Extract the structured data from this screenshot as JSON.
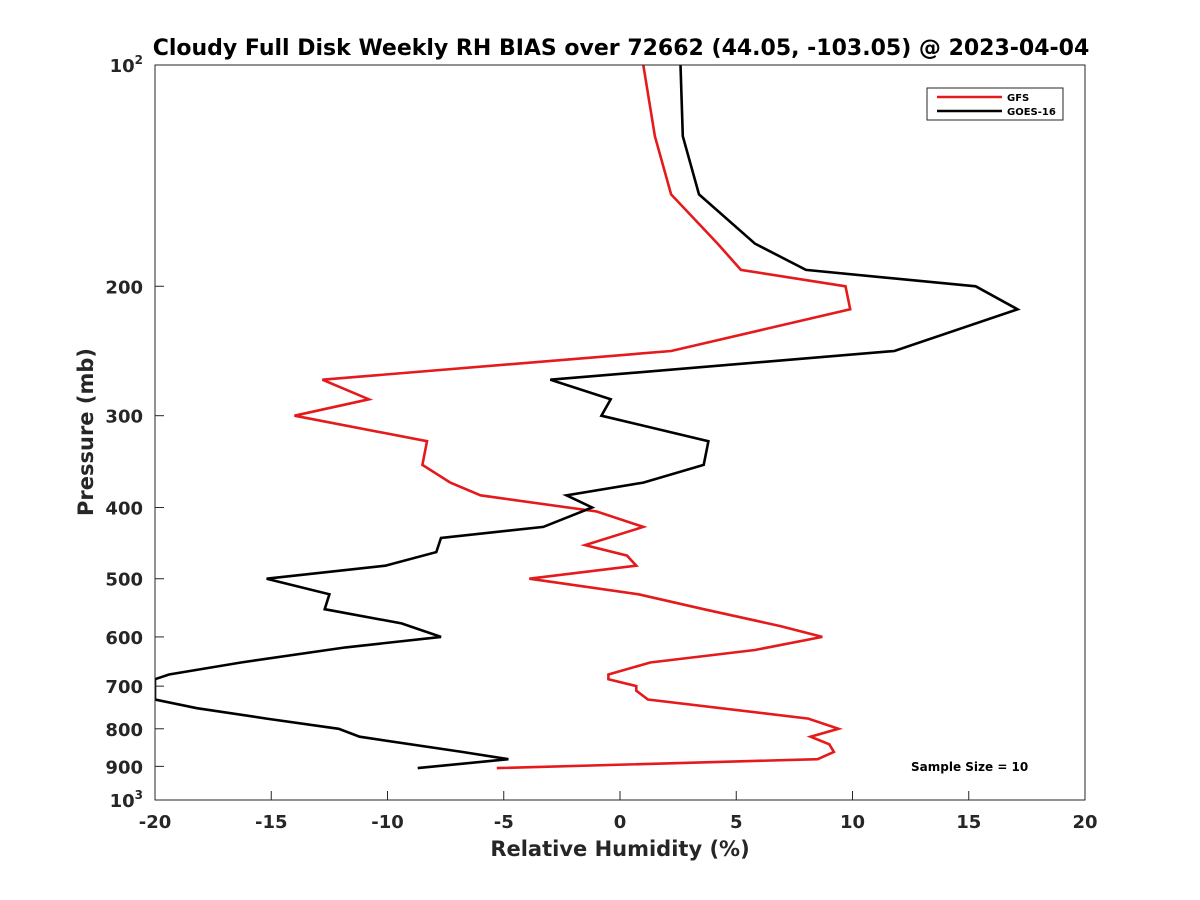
{
  "chart_data": {
    "type": "line",
    "title": "Cloudy Full Disk Weekly RH BIAS over 72662 (44.05, -103.05) @ 2023-04-04",
    "xlabel": "Relative Humidity (%)",
    "ylabel": "Pressure (mb)",
    "xlim": [
      -20,
      20
    ],
    "ylim": [
      100,
      1000
    ],
    "y_scale": "log",
    "y_reversed": true,
    "x_ticks": [
      -20,
      -15,
      -10,
      -5,
      0,
      5,
      10,
      15,
      20
    ],
    "x_tick_labels": [
      "-20",
      "-15",
      "-10",
      "-5",
      "0",
      "5",
      "10",
      "15",
      "20"
    ],
    "y_ticks": [
      {
        "value": 100,
        "base": "10",
        "exp": "2"
      },
      {
        "value": 200,
        "label": "200"
      },
      {
        "value": 300,
        "label": "300"
      },
      {
        "value": 400,
        "label": "400"
      },
      {
        "value": 500,
        "label": "500"
      },
      {
        "value": 600,
        "label": "600"
      },
      {
        "value": 700,
        "label": "700"
      },
      {
        "value": 800,
        "label": "800"
      },
      {
        "value": 900,
        "label": "900"
      },
      {
        "value": 1000,
        "base": "10",
        "exp": "3"
      }
    ],
    "grid": false,
    "legend_position": "top-right",
    "annotation": "Sample Size = 10",
    "series": [
      {
        "name": "GFS",
        "color": "#e41a1c",
        "points": [
          [
            1.0,
            100
          ],
          [
            1.5,
            125
          ],
          [
            2.2,
            150
          ],
          [
            4.2,
            175
          ],
          [
            5.2,
            190
          ],
          [
            9.7,
            200
          ],
          [
            9.9,
            215
          ],
          [
            2.2,
            245
          ],
          [
            -12.8,
            268
          ],
          [
            -10.8,
            285
          ],
          [
            -14.0,
            300
          ],
          [
            -8.3,
            325
          ],
          [
            -8.5,
            350
          ],
          [
            -7.3,
            370
          ],
          [
            -6.0,
            385
          ],
          [
            -1.0,
            405
          ],
          [
            1.0,
            425
          ],
          [
            -1.5,
            450
          ],
          [
            0.3,
            465
          ],
          [
            0.7,
            480
          ],
          [
            -3.9,
            500
          ],
          [
            0.8,
            525
          ],
          [
            3.6,
            550
          ],
          [
            6.9,
            580
          ],
          [
            8.7,
            600
          ],
          [
            5.8,
            625
          ],
          [
            1.3,
            650
          ],
          [
            -0.5,
            675
          ],
          [
            -0.5,
            685
          ],
          [
            0.7,
            700
          ],
          [
            0.7,
            710
          ],
          [
            1.2,
            730
          ],
          [
            8.1,
            775
          ],
          [
            9.4,
            800
          ],
          [
            8.2,
            820
          ],
          [
            9.0,
            840
          ],
          [
            9.2,
            860
          ],
          [
            8.5,
            880
          ],
          [
            -5.3,
            905
          ]
        ]
      },
      {
        "name": "GOES-16",
        "color": "#000000",
        "points": [
          [
            2.6,
            100
          ],
          [
            2.7,
            125
          ],
          [
            3.4,
            150
          ],
          [
            5.8,
            175
          ],
          [
            8.0,
            190
          ],
          [
            15.3,
            200
          ],
          [
            17.1,
            215
          ],
          [
            11.8,
            245
          ],
          [
            -3.0,
            268
          ],
          [
            -0.4,
            285
          ],
          [
            -0.8,
            300
          ],
          [
            3.8,
            325
          ],
          [
            3.6,
            350
          ],
          [
            1.0,
            370
          ],
          [
            -2.3,
            385
          ],
          [
            -1.2,
            400
          ],
          [
            -3.3,
            425
          ],
          [
            -7.7,
            440
          ],
          [
            -7.9,
            460
          ],
          [
            -10.1,
            480
          ],
          [
            -15.2,
            500
          ],
          [
            -12.5,
            525
          ],
          [
            -12.7,
            550
          ],
          [
            -9.4,
            575
          ],
          [
            -7.7,
            600
          ],
          [
            -11.8,
            620
          ],
          [
            -16.3,
            650
          ],
          [
            -19.4,
            675
          ],
          [
            -20.0,
            685
          ],
          [
            -20.0,
            730
          ],
          [
            -18.2,
            750
          ],
          [
            -15.2,
            775
          ],
          [
            -12.1,
            800
          ],
          [
            -11.2,
            820
          ],
          [
            -6.8,
            860
          ],
          [
            -4.8,
            880
          ],
          [
            -8.7,
            905
          ]
        ]
      }
    ]
  }
}
